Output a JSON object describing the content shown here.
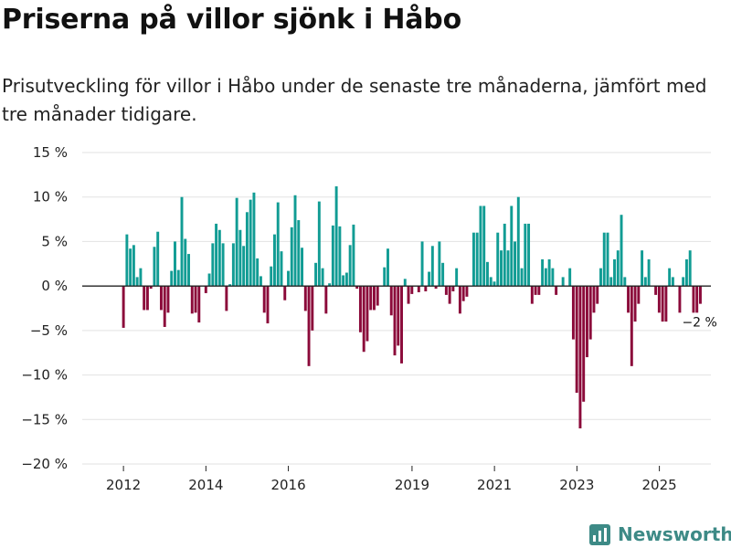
{
  "title": "Priserna på villor sjönk i Håbo",
  "subtitle": "Prisutveckling för villor i Håbo under de senaste tre månaderna, jämfört med tre månader tidigare.",
  "brand": {
    "name": "Newsworthy",
    "logo_icon": "newsworthy-bar-chart-icon"
  },
  "colors": {
    "positive": "#119c94",
    "negative": "#8b0a3a",
    "axis": "#222222",
    "grid": "#e2e2e2",
    "brand": "#3d8a86"
  },
  "chart_data": {
    "type": "bar",
    "title": "Priserna på villor sjönk i Håbo",
    "xlabel": "",
    "ylabel": "",
    "ylim": [
      -20,
      15
    ],
    "xlim": [
      2011.0,
      2026.25
    ],
    "yticks": [
      15,
      10,
      5,
      0,
      -5,
      -10,
      -15,
      -20
    ],
    "ytick_labels": [
      "15 %",
      "10 %",
      "5 %",
      "0 %",
      "−5 %",
      "−10 %",
      "−15 %",
      "−20 %"
    ],
    "xticks": [
      2012,
      2014,
      2016,
      2019,
      2021,
      2023,
      2025
    ],
    "xtick_labels": [
      "2012",
      "2014",
      "2016",
      "2019",
      "2021",
      "2023",
      "2025"
    ],
    "series": [
      {
        "name": "Prisutveckling",
        "start": 2012.0,
        "step": 0.0833,
        "values": [
          -4.7,
          5.8,
          4.2,
          4.6,
          1.0,
          2.0,
          -2.7,
          -2.7,
          -0.3,
          4.4,
          6.1,
          -2.7,
          -4.6,
          -3.0,
          1.7,
          5.0,
          1.8,
          10.0,
          5.3,
          3.6,
          -3.1,
          -3.0,
          -4.1,
          0.0,
          -0.8,
          1.4,
          4.8,
          7.0,
          6.3,
          4.8,
          -2.8,
          0.2,
          4.8,
          9.9,
          6.3,
          4.5,
          8.3,
          9.7,
          10.5,
          3.1,
          1.1,
          -3.0,
          -4.2,
          2.2,
          5.8,
          9.4,
          3.9,
          -1.6,
          1.7,
          6.6,
          10.2,
          7.4,
          4.3,
          -2.8,
          -9.0,
          -5.0,
          2.6,
          9.5,
          2.0,
          -3.1,
          0.3,
          6.8,
          11.2,
          6.7,
          1.2,
          1.5,
          4.6,
          6.9,
          -0.3,
          -5.2,
          -7.4,
          -6.2,
          -2.7,
          -2.7,
          -2.2,
          0.0,
          2.1,
          4.2,
          -3.3,
          -7.8,
          -6.7,
          -8.7,
          0.8,
          -2.0,
          -0.9,
          0.0,
          -0.7,
          5.0,
          -0.6,
          1.6,
          4.5,
          -0.3,
          5.0,
          2.6,
          -1.0,
          -2.0,
          -0.6,
          2.0,
          -3.1,
          -1.7,
          -1.2,
          0.0,
          6.0,
          6.0,
          9.0,
          9.0,
          2.7,
          1.0,
          0.5,
          6.0,
          4.0,
          7.0,
          4.0,
          9.0,
          5.0,
          10.0,
          2.0,
          7.0,
          7.0,
          -2.0,
          -1.0,
          -1.0,
          3.0,
          2.0,
          3.0,
          2.0,
          -1.0,
          0.0,
          1.0,
          0.0,
          2.0,
          -6.0,
          -12.0,
          -16.0,
          -13.0,
          -8.0,
          -6.0,
          -3.0,
          -2.0,
          2.0,
          6.0,
          6.0,
          1.0,
          3.0,
          4.0,
          8.0,
          1.0,
          -3.0,
          -9.0,
          -4.0,
          -2.0,
          4.0,
          1.0,
          3.0,
          0.0,
          -1.0,
          -3.0,
          -4.0,
          -4.0,
          2.0,
          1.0,
          0.0,
          -3.0,
          1.0,
          3.0,
          4.0,
          -3.0,
          -3.0,
          -2.0
        ]
      }
    ],
    "last_value_label": "−2 %"
  }
}
